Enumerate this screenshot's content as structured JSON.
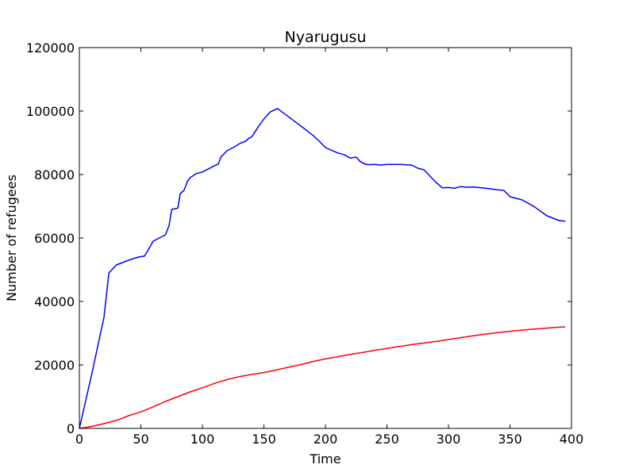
{
  "chart_data": {
    "type": "line",
    "title": "Nyarugusu",
    "xlabel": "Time",
    "ylabel": "Number of refugees",
    "xlim": [
      0,
      400
    ],
    "ylim": [
      0,
      120000
    ],
    "xticks": [
      "0",
      "50",
      "100",
      "150",
      "200",
      "250",
      "300",
      "350",
      "400"
    ],
    "yticks": [
      "0",
      "20000",
      "40000",
      "60000",
      "80000",
      "100000",
      "120000"
    ],
    "grid": false,
    "legend": null,
    "series": [
      {
        "color": "#0000ff",
        "x": [
          0,
          10,
          20,
          24,
          30,
          40,
          48,
          53,
          60,
          70,
          73,
          75,
          80,
          82,
          85,
          88,
          90,
          95,
          100,
          105,
          110,
          113,
          115,
          120,
          125,
          130,
          135,
          138,
          140,
          145,
          150,
          155,
          161,
          170,
          180,
          190,
          195,
          200,
          210,
          215,
          220,
          225,
          228,
          232,
          235,
          240,
          245,
          250,
          255,
          260,
          270,
          275,
          280,
          290,
          295,
          300,
          305,
          310,
          315,
          320,
          330,
          340,
          345,
          350,
          360,
          370,
          380,
          390,
          395
        ],
        "y": [
          0,
          17000,
          35000,
          49000,
          51500,
          53000,
          54000,
          54300,
          59000,
          61000,
          64000,
          69000,
          69400,
          74000,
          75000,
          78000,
          79000,
          80300,
          80800,
          81800,
          82800,
          83300,
          85500,
          87500,
          88500,
          89700,
          90500,
          91500,
          91800,
          94800,
          97500,
          99700,
          100800,
          98200,
          95300,
          92300,
          90500,
          88500,
          86800,
          86300,
          85200,
          85500,
          84200,
          83300,
          83100,
          83200,
          83000,
          83200,
          83200,
          83200,
          83000,
          82000,
          81500,
          77500,
          75800,
          75900,
          75700,
          76200,
          76000,
          76100,
          75700,
          75200,
          75000,
          73000,
          72000,
          69800,
          67000,
          65500,
          65300
        ]
      },
      {
        "color": "#ff0000",
        "x": [
          0,
          10,
          20,
          30,
          35,
          40,
          50,
          60,
          70,
          80,
          90,
          100,
          110,
          120,
          130,
          140,
          150,
          160,
          170,
          180,
          190,
          200,
          210,
          220,
          230,
          240,
          250,
          260,
          270,
          280,
          290,
          300,
          310,
          320,
          330,
          340,
          350,
          360,
          370,
          380,
          390,
          395
        ],
        "y": [
          0,
          600,
          1500,
          2500,
          3200,
          4000,
          5200,
          6800,
          8500,
          10000,
          11500,
          12800,
          14200,
          15400,
          16300,
          17000,
          17600,
          18400,
          19300,
          20100,
          21100,
          21900,
          22600,
          23300,
          23900,
          24600,
          25200,
          25800,
          26400,
          26900,
          27400,
          28000,
          28600,
          29200,
          29700,
          30200,
          30600,
          31000,
          31300,
          31600,
          31900,
          32000
        ]
      }
    ]
  }
}
